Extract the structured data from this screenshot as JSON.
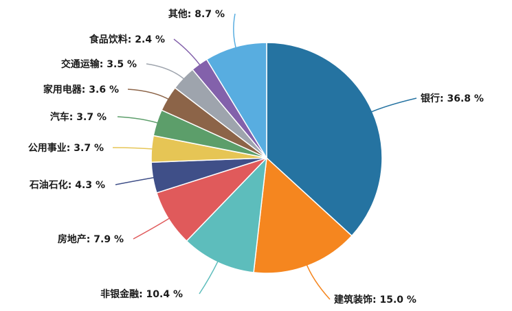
{
  "chart_data": {
    "type": "pie",
    "title": "",
    "series": [
      {
        "name": "银行",
        "value": 36.8,
        "label": "银行: 36.8 %",
        "color": "#2573a1"
      },
      {
        "name": "建筑装饰",
        "value": 15.0,
        "label": "建筑装饰: 15.0 %",
        "color": "#f5861f"
      },
      {
        "name": "非银金融",
        "value": 10.4,
        "label": "非银金融: 10.4 %",
        "color": "#5dbdbc"
      },
      {
        "name": "房地产",
        "value": 7.9,
        "label": "房地产: 7.9 %",
        "color": "#e05a5b"
      },
      {
        "name": "石油石化",
        "value": 4.3,
        "label": "石油石化: 4.3 %",
        "color": "#3f4f88"
      },
      {
        "name": "公用事业",
        "value": 3.7,
        "label": "公用事业: 3.7 %",
        "color": "#e6c555"
      },
      {
        "name": "汽车",
        "value": 3.7,
        "label": "汽车: 3.7 %",
        "color": "#5c9e6a"
      },
      {
        "name": "家用电器",
        "value": 3.6,
        "label": "家用电器: 3.6 %",
        "color": "#8c6448"
      },
      {
        "name": "交通运输",
        "value": 3.5,
        "label": "交通运输: 3.5 %",
        "color": "#9ea4ad"
      },
      {
        "name": "食品饮料",
        "value": 2.4,
        "label": "食品饮料: 2.4 %",
        "color": "#8361ab"
      },
      {
        "name": "其他",
        "value": 8.7,
        "label": "其他: 8.7 %",
        "color": "#58ade0"
      }
    ]
  }
}
